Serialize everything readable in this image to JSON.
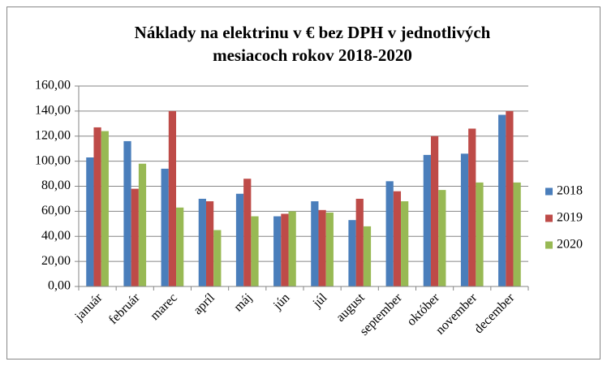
{
  "chart_data": {
    "type": "bar",
    "title": [
      "Náklady na elektrinu v € bez DPH v jednotlivých",
      "mesiacoch rokov 2018-2020"
    ],
    "categories": [
      "január",
      "február",
      "marec",
      "apríl",
      "máj",
      "jún",
      "júl",
      "august",
      "september",
      "október",
      "november",
      "december"
    ],
    "series": [
      {
        "name": "2018",
        "color": "#4a7ebb",
        "values": [
          103,
          116,
          94,
          70,
          74,
          56,
          68,
          53,
          84,
          105,
          106,
          137
        ]
      },
      {
        "name": "2019",
        "color": "#be4b48",
        "values": [
          127,
          78,
          140,
          68,
          86,
          58,
          61,
          70,
          76,
          120,
          126,
          140
        ]
      },
      {
        "name": "2020",
        "color": "#98b954",
        "values": [
          124,
          98,
          63,
          45,
          56,
          60,
          59,
          48,
          68,
          77,
          83,
          83
        ]
      }
    ],
    "ylim": [
      0,
      160
    ],
    "yticks": [
      {
        "value": 0,
        "label": "0,00"
      },
      {
        "value": 20,
        "label": "20,00"
      },
      {
        "value": 40,
        "label": "40,00"
      },
      {
        "value": 60,
        "label": "60,00"
      },
      {
        "value": 80,
        "label": "80,00"
      },
      {
        "value": 100,
        "label": "100,00"
      },
      {
        "value": 120,
        "label": "120,00"
      },
      {
        "value": 140,
        "label": "140,00"
      },
      {
        "value": 160,
        "label": "160,00"
      }
    ],
    "grid": true,
    "legend": "right"
  }
}
